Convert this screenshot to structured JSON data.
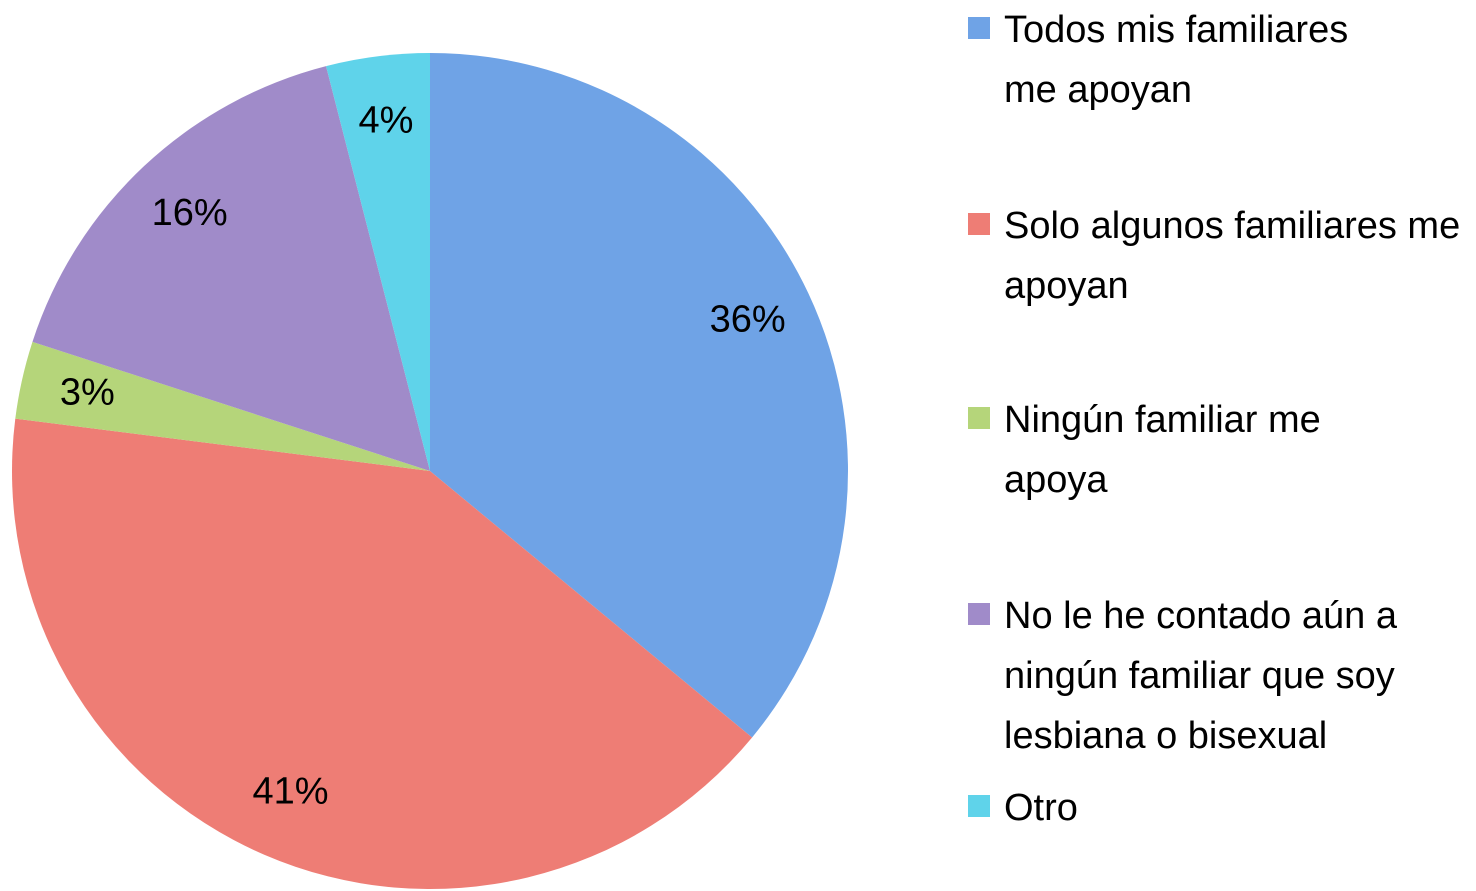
{
  "chart_data": {
    "type": "pie",
    "categories": [
      "Todos mis familiares me apoyan",
      "Solo algunos familiares me apoyan",
      "Ningún familiar me apoya",
      "No le he contado aún a ningún familiar que soy lesbiana o bisexual",
      "Otro"
    ],
    "values": [
      36,
      41,
      3,
      16,
      4
    ],
    "value_labels": [
      "36%",
      "41%",
      "3%",
      "16%",
      "4%"
    ],
    "colors": [
      "#6fa3e6",
      "#ee7d75",
      "#b5d57a",
      "#a08bc9",
      "#5fd3ea"
    ],
    "legend": "right"
  }
}
